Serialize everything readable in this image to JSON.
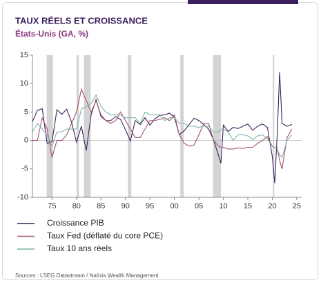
{
  "chart_data": {
    "type": "line",
    "title": "TAUX RÉELS ET CROISSANCE",
    "subtitle": "États-Unis (GA, %)",
    "source": "Sources : LSEG Datastream / Natixis Wealth Management",
    "x": [
      1971,
      1972,
      1973,
      1974,
      1975,
      1976,
      1977,
      1978,
      1979,
      1980,
      1981,
      1982,
      1983,
      1984,
      1985,
      1986,
      1987,
      1988,
      1989,
      1990,
      1991,
      1992,
      1993,
      1994,
      1995,
      1996,
      1997,
      1998,
      1999,
      2000,
      2001,
      2002,
      2003,
      2004,
      2005,
      2006,
      2007,
      2008,
      2009,
      2009.5,
      2010,
      2011,
      2012,
      2013,
      2014,
      2015,
      2016,
      2017,
      2018,
      2019,
      2020,
      2020.5,
      2021,
      2021.5,
      2022,
      2023,
      2024
    ],
    "series": [
      {
        "name": "Croissance PIB",
        "color": "#3b1e5c",
        "values": [
          3.3,
          5.3,
          5.6,
          -0.5,
          -0.2,
          5.4,
          4.6,
          5.5,
          3.2,
          -0.3,
          2.5,
          -1.8,
          4.6,
          7.2,
          4.2,
          3.5,
          3.5,
          4.2,
          3.7,
          1.9,
          -0.1,
          3.5,
          2.8,
          4.0,
          2.7,
          3.8,
          4.4,
          4.5,
          4.8,
          4.1,
          1.0,
          1.7,
          2.8,
          3.9,
          3.5,
          2.8,
          2.0,
          0.1,
          -2.6,
          -4,
          2.7,
          1.6,
          2.3,
          2.1,
          2.5,
          2.9,
          1.8,
          2.5,
          2.9,
          2.3,
          -2.8,
          -7.5,
          1,
          12,
          3,
          2.5,
          2.8
        ]
      },
      {
        "name": "Taux Fed (déflaté du core PCE)",
        "color": "#a3506f",
        "values": [
          0,
          0,
          4,
          2,
          -3,
          0,
          0,
          1,
          3,
          5,
          9,
          7,
          5,
          7,
          4.5,
          3.5,
          3,
          3.5,
          5,
          3.5,
          2,
          0.5,
          0.5,
          2,
          3.5,
          3.5,
          3.7,
          4,
          3.5,
          4.5,
          1,
          -0.5,
          -1,
          -0.8,
          1,
          3,
          3,
          0,
          -1,
          -1.2,
          -1.2,
          -1.5,
          -1.5,
          -1.3,
          -1.4,
          -1.2,
          -1.2,
          -0.5,
          0,
          0.7,
          -1,
          -1.3,
          -1.3,
          -3.5,
          -5,
          0.5,
          2
        ]
      },
      {
        "name": "Taux 10 ans réels",
        "color": "#7fb3a3",
        "values": [
          1.5,
          3,
          2,
          1,
          -1,
          1.5,
          1.5,
          2,
          2,
          2,
          5.5,
          6,
          6.5,
          8,
          6,
          5,
          4.5,
          4.5,
          4.5,
          4,
          4,
          4,
          3,
          5,
          4.5,
          4.5,
          4.5,
          3.5,
          4,
          4,
          3,
          3,
          2.5,
          2.5,
          2.3,
          2.5,
          2.5,
          1.5,
          1.5,
          2,
          2,
          1.5,
          0,
          1,
          1,
          0.8,
          0.2,
          0.8,
          1,
          0.3,
          -1,
          -1.2,
          -1.5,
          -2.5,
          -3,
          0,
          1
        ]
      }
    ],
    "recessions": [
      [
        1973.9,
        1975.2
      ],
      [
        1980.0,
        1980.5
      ],
      [
        1981.5,
        1982.9
      ],
      [
        1990.5,
        1991.2
      ],
      [
        2001.2,
        2001.9
      ],
      [
        2007.9,
        2009.5
      ],
      [
        2020.1,
        2020.4
      ]
    ],
    "recession_color": "#d4d4d4",
    "xlim": [
      1971,
      2026
    ],
    "ylim": [
      -10,
      15
    ],
    "xticks": [
      {
        "value": 1975,
        "label": "75"
      },
      {
        "value": 1980,
        "label": "80"
      },
      {
        "value": 1985,
        "label": "85"
      },
      {
        "value": 1990,
        "label": "90"
      },
      {
        "value": 1995,
        "label": "95"
      },
      {
        "value": 2000,
        "label": "00"
      },
      {
        "value": 2005,
        "label": "05"
      },
      {
        "value": 2010,
        "label": "10"
      },
      {
        "value": 2015,
        "label": "15"
      },
      {
        "value": 2020,
        "label": "20"
      },
      {
        "value": 2025,
        "label": "25"
      }
    ],
    "yticks": [
      15,
      10,
      5,
      0,
      -5,
      -10
    ]
  }
}
